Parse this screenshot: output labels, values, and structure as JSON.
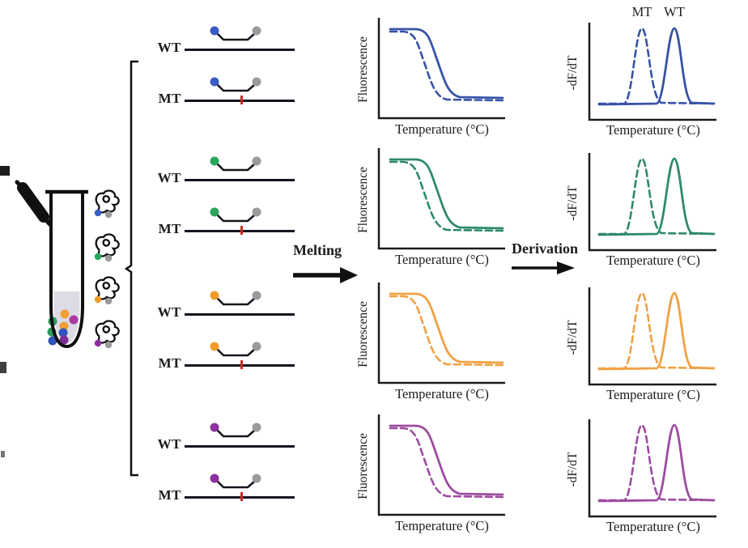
{
  "palette": {
    "ink": "#1c1c1c",
    "strand_line": "#15151f",
    "quencher_gray": "#9a9a9a",
    "mutation_red": "#d32525",
    "tube_liquid": "#dcdbe6"
  },
  "arrows": {
    "melting_label": "Melting",
    "derivation_label": "Derivation"
  },
  "plot_labels": {
    "melt_y": "Fluorescence",
    "deriv_y": "-dF/dT",
    "x": "Temperature (°C)",
    "mt": "MT",
    "wt": "WT"
  },
  "groups": [
    {
      "wt_label": "WT",
      "mt_label": "MT",
      "dye_color": "#3a5bc4",
      "curve_color": "#3753a8"
    },
    {
      "wt_label": "WT",
      "mt_label": "MT",
      "dye_color": "#2aa55c",
      "curve_color": "#2e8a6c"
    },
    {
      "wt_label": "WT",
      "mt_label": "MT",
      "dye_color": "#f29c2e",
      "curve_color": "#f0a144"
    },
    {
      "wt_label": "WT",
      "mt_label": "MT",
      "dye_color": "#8d2f9f",
      "curve_color": "#9d4ba1"
    }
  ],
  "probe_icons": [
    {
      "dye_color": "#3a5bc4"
    },
    {
      "dye_color": "#2aa55c"
    },
    {
      "dye_color": "#f29c2e"
    },
    {
      "dye_color": "#8d2f9f"
    }
  ],
  "tube": {
    "dye_dots": [
      "#f09f34",
      "#ab3a9d",
      "#279c5d",
      "#f09f34",
      "#279c5d",
      "#3153bd",
      "#3153bd",
      "#7c2d96"
    ]
  },
  "chart_data": [
    {
      "type": "line",
      "row": 1,
      "panel": "melting_curve",
      "color": "#3753a8",
      "xlabel": "Temperature (°C)",
      "ylabel": "Fluorescence",
      "axes_numeric": false,
      "series": [
        {
          "name": "WT",
          "style": "solid",
          "shape": "decreasing sigmoid",
          "position": "higher melting temperature (right)"
        },
        {
          "name": "MT",
          "style": "dashed",
          "shape": "decreasing sigmoid",
          "position": "lower melting temperature (left)"
        }
      ]
    },
    {
      "type": "line",
      "row": 1,
      "panel": "derivative_peak",
      "color": "#3753a8",
      "xlabel": "Temperature (°C)",
      "ylabel": "-dF/dT",
      "axes_numeric": false,
      "series_labels_shown": true,
      "series": [
        {
          "name": "MT",
          "style": "dashed",
          "shape": "peak",
          "position": "left (lower Tm)"
        },
        {
          "name": "WT",
          "style": "solid",
          "shape": "peak",
          "position": "right (higher Tm)"
        }
      ]
    },
    {
      "type": "line",
      "row": 2,
      "panel": "melting_curve",
      "color": "#2e8a6c",
      "xlabel": "Temperature (°C)",
      "ylabel": "Fluorescence",
      "axes_numeric": false,
      "series": [
        {
          "name": "WT",
          "style": "solid",
          "shape": "decreasing sigmoid",
          "position": "right"
        },
        {
          "name": "MT",
          "style": "dashed",
          "shape": "decreasing sigmoid",
          "position": "left"
        }
      ]
    },
    {
      "type": "line",
      "row": 2,
      "panel": "derivative_peak",
      "color": "#2e8a6c",
      "xlabel": "Temperature (°C)",
      "ylabel": "-dF/dT",
      "axes_numeric": false,
      "series_labels_shown": false,
      "series": [
        {
          "name": "MT",
          "style": "dashed",
          "shape": "peak",
          "position": "left"
        },
        {
          "name": "WT",
          "style": "solid",
          "shape": "peak",
          "position": "right"
        }
      ]
    },
    {
      "type": "line",
      "row": 3,
      "panel": "melting_curve",
      "color": "#f0a144",
      "xlabel": "Temperature (°C)",
      "ylabel": "Fluorescence",
      "axes_numeric": false,
      "series": [
        {
          "name": "WT",
          "style": "solid",
          "shape": "decreasing sigmoid",
          "position": "right"
        },
        {
          "name": "MT",
          "style": "dashed",
          "shape": "decreasing sigmoid",
          "position": "left"
        }
      ]
    },
    {
      "type": "line",
      "row": 3,
      "panel": "derivative_peak",
      "color": "#f0a144",
      "xlabel": "Temperature (°C)",
      "ylabel": "-dF/dT",
      "axes_numeric": false,
      "series_labels_shown": false,
      "series": [
        {
          "name": "MT",
          "style": "dashed",
          "shape": "peak",
          "position": "left"
        },
        {
          "name": "WT",
          "style": "solid",
          "shape": "peak",
          "position": "right"
        }
      ]
    },
    {
      "type": "line",
      "row": 4,
      "panel": "melting_curve",
      "color": "#9d4ba1",
      "xlabel": "Temperature (°C)",
      "ylabel": "Fluorescence",
      "axes_numeric": false,
      "series": [
        {
          "name": "WT",
          "style": "solid",
          "shape": "decreasing sigmoid",
          "position": "right"
        },
        {
          "name": "MT",
          "style": "dashed",
          "shape": "decreasing sigmoid",
          "position": "left"
        }
      ]
    },
    {
      "type": "line",
      "row": 4,
      "panel": "derivative_peak",
      "color": "#9d4ba1",
      "xlabel": "Temperature (°C)",
      "ylabel": "-dF/dT",
      "axes_numeric": false,
      "series_labels_shown": false,
      "series": [
        {
          "name": "MT",
          "style": "dashed",
          "shape": "peak",
          "position": "left"
        },
        {
          "name": "WT",
          "style": "solid",
          "shape": "peak",
          "position": "right"
        }
      ]
    }
  ]
}
